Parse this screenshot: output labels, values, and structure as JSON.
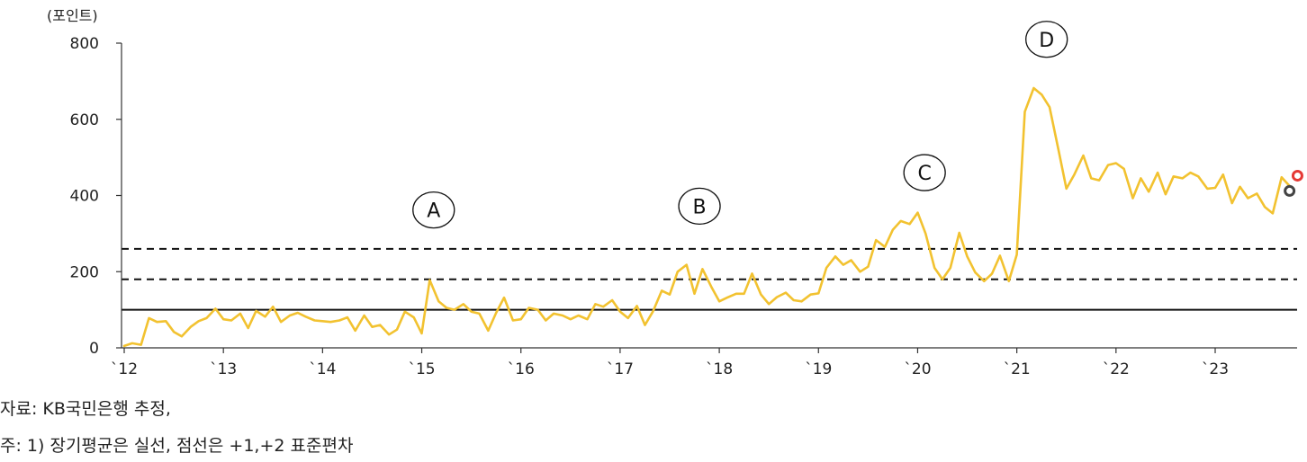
{
  "chart_data": {
    "type": "line",
    "unit_label": "(포인트)",
    "ylim": [
      0,
      800
    ],
    "yticks": [
      0,
      200,
      400,
      600,
      800
    ],
    "xlim": [
      2012.0,
      2024.1
    ],
    "xticks": [
      {
        "label": "`12",
        "value": 2012
      },
      {
        "label": "`13",
        "value": 2013
      },
      {
        "label": "`14",
        "value": 2014
      },
      {
        "label": "`15",
        "value": 2015
      },
      {
        "label": "`16",
        "value": 2016
      },
      {
        "label": "`17",
        "value": 2017
      },
      {
        "label": "`18",
        "value": 2018
      },
      {
        "label": "`19",
        "value": 2019
      },
      {
        "label": "`20",
        "value": 2020
      },
      {
        "label": "`21",
        "value": 2021
      },
      {
        "label": "`22",
        "value": 2022
      },
      {
        "label": "`23",
        "value": 2023
      }
    ],
    "series": [
      {
        "color": "#F2C230",
        "points": [
          [
            2012.0,
            5
          ],
          [
            2012.08,
            12
          ],
          [
            2012.17,
            8
          ],
          [
            2012.25,
            78
          ],
          [
            2012.33,
            68
          ],
          [
            2012.42,
            70
          ],
          [
            2012.5,
            42
          ],
          [
            2012.58,
            30
          ],
          [
            2012.67,
            55
          ],
          [
            2012.75,
            70
          ],
          [
            2012.83,
            78
          ],
          [
            2012.92,
            103
          ],
          [
            2013.0,
            75
          ],
          [
            2013.08,
            72
          ],
          [
            2013.17,
            90
          ],
          [
            2013.25,
            52
          ],
          [
            2013.33,
            97
          ],
          [
            2013.42,
            82
          ],
          [
            2013.5,
            108
          ],
          [
            2013.58,
            68
          ],
          [
            2013.67,
            85
          ],
          [
            2013.75,
            92
          ],
          [
            2013.83,
            82
          ],
          [
            2013.92,
            72
          ],
          [
            2014.0,
            70
          ],
          [
            2014.08,
            68
          ],
          [
            2014.17,
            72
          ],
          [
            2014.25,
            80
          ],
          [
            2014.33,
            45
          ],
          [
            2014.42,
            85
          ],
          [
            2014.5,
            55
          ],
          [
            2014.58,
            60
          ],
          [
            2014.67,
            35
          ],
          [
            2014.75,
            48
          ],
          [
            2014.83,
            95
          ],
          [
            2014.92,
            80
          ],
          [
            2015.0,
            38
          ],
          [
            2015.08,
            178
          ],
          [
            2015.17,
            122
          ],
          [
            2015.25,
            105
          ],
          [
            2015.33,
            100
          ],
          [
            2015.42,
            115
          ],
          [
            2015.5,
            95
          ],
          [
            2015.58,
            90
          ],
          [
            2015.67,
            45
          ],
          [
            2015.75,
            92
          ],
          [
            2015.83,
            132
          ],
          [
            2015.92,
            72
          ],
          [
            2016.0,
            75
          ],
          [
            2016.08,
            105
          ],
          [
            2016.17,
            100
          ],
          [
            2016.25,
            72
          ],
          [
            2016.33,
            90
          ],
          [
            2016.42,
            85
          ],
          [
            2016.5,
            75
          ],
          [
            2016.58,
            85
          ],
          [
            2016.67,
            75
          ],
          [
            2016.75,
            115
          ],
          [
            2016.83,
            108
          ],
          [
            2016.92,
            125
          ],
          [
            2017.0,
            95
          ],
          [
            2017.08,
            78
          ],
          [
            2017.17,
            110
          ],
          [
            2017.25,
            60
          ],
          [
            2017.33,
            95
          ],
          [
            2017.42,
            150
          ],
          [
            2017.5,
            140
          ],
          [
            2017.58,
            200
          ],
          [
            2017.67,
            218
          ],
          [
            2017.75,
            142
          ],
          [
            2017.83,
            207
          ],
          [
            2017.92,
            160
          ],
          [
            2018.0,
            122
          ],
          [
            2018.08,
            132
          ],
          [
            2018.17,
            142
          ],
          [
            2018.25,
            142
          ],
          [
            2018.33,
            195
          ],
          [
            2018.42,
            140
          ],
          [
            2018.5,
            115
          ],
          [
            2018.58,
            133
          ],
          [
            2018.67,
            145
          ],
          [
            2018.75,
            125
          ],
          [
            2018.83,
            122
          ],
          [
            2018.92,
            140
          ],
          [
            2019.0,
            143
          ],
          [
            2019.08,
            210
          ],
          [
            2019.17,
            240
          ],
          [
            2019.25,
            218
          ],
          [
            2019.33,
            230
          ],
          [
            2019.42,
            200
          ],
          [
            2019.5,
            213
          ],
          [
            2019.58,
            283
          ],
          [
            2019.67,
            265
          ],
          [
            2019.75,
            310
          ],
          [
            2019.83,
            333
          ],
          [
            2019.92,
            325
          ],
          [
            2020.0,
            355
          ],
          [
            2020.08,
            300
          ],
          [
            2020.17,
            210
          ],
          [
            2020.25,
            180
          ],
          [
            2020.33,
            210
          ],
          [
            2020.42,
            302
          ],
          [
            2020.5,
            240
          ],
          [
            2020.58,
            198
          ],
          [
            2020.67,
            175
          ],
          [
            2020.75,
            195
          ],
          [
            2020.83,
            242
          ],
          [
            2020.92,
            175
          ],
          [
            2021.0,
            245
          ],
          [
            2021.08,
            620
          ],
          [
            2021.17,
            682
          ],
          [
            2021.25,
            665
          ],
          [
            2021.33,
            632
          ],
          [
            2021.42,
            520
          ],
          [
            2021.5,
            418
          ],
          [
            2021.58,
            455
          ],
          [
            2021.67,
            505
          ],
          [
            2021.75,
            445
          ],
          [
            2021.83,
            440
          ],
          [
            2021.92,
            480
          ],
          [
            2022.0,
            485
          ],
          [
            2022.08,
            470
          ],
          [
            2022.17,
            393
          ],
          [
            2022.25,
            445
          ],
          [
            2022.33,
            410
          ],
          [
            2022.42,
            460
          ],
          [
            2022.5,
            403
          ],
          [
            2022.58,
            450
          ],
          [
            2022.67,
            445
          ],
          [
            2022.75,
            460
          ],
          [
            2022.83,
            450
          ],
          [
            2022.92,
            418
          ],
          [
            2023.0,
            420
          ],
          [
            2023.08,
            455
          ],
          [
            2023.17,
            380
          ],
          [
            2023.25,
            423
          ],
          [
            2023.33,
            393
          ],
          [
            2023.42,
            405
          ],
          [
            2023.5,
            370
          ],
          [
            2023.58,
            353
          ],
          [
            2023.67,
            448
          ],
          [
            2023.75,
            425
          ]
        ]
      }
    ],
    "reference_lines": [
      {
        "value": 100,
        "style": "solid"
      },
      {
        "value": 180,
        "style": "dashed"
      },
      {
        "value": 260,
        "style": "dashed"
      }
    ],
    "markers": [
      {
        "x": 2023.75,
        "y": 412,
        "color": "#444444"
      },
      {
        "x": 2023.83,
        "y": 452,
        "color": "#E53935"
      }
    ],
    "annotations": [
      {
        "label": "A",
        "x": 2015.12,
        "y": 362
      },
      {
        "label": "B",
        "x": 2017.8,
        "y": 372
      },
      {
        "label": "C",
        "x": 2020.07,
        "y": 460
      },
      {
        "label": "D",
        "x": 2021.3,
        "y": 810
      }
    ]
  },
  "notes": {
    "source": "자료: KB국민은행 추정,",
    "footnote": "주: 1) 장기평균은 실선, 점선은 +1,+2 표준편차"
  }
}
